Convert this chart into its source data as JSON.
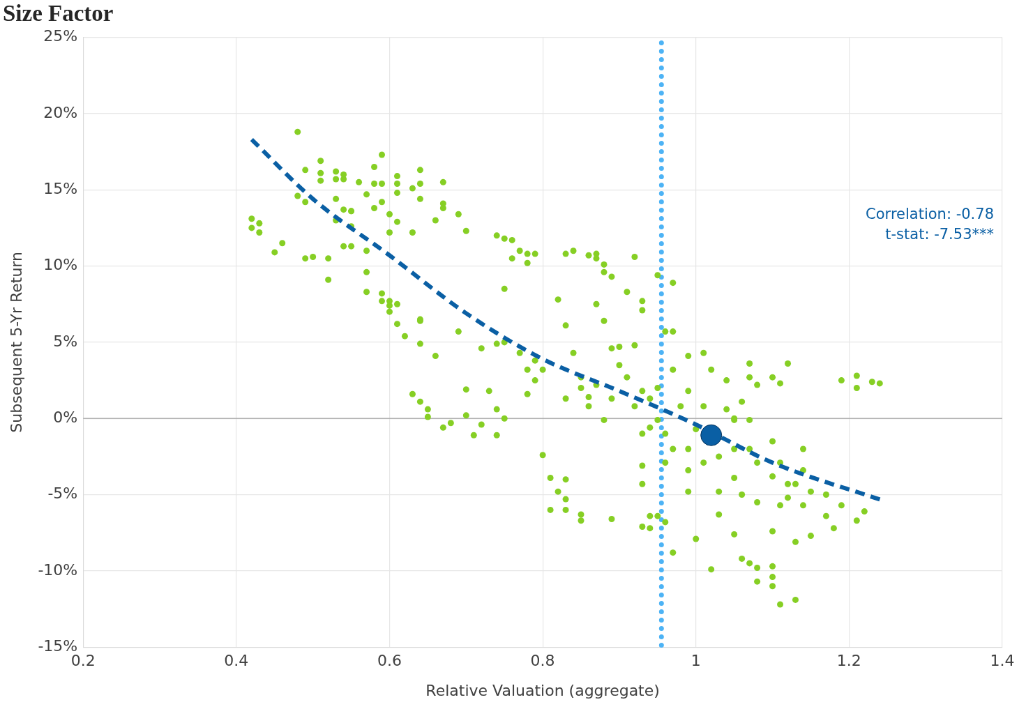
{
  "chart_data": {
    "type": "scatter",
    "title": "Size Factor",
    "xlabel": "Relative Valuation (aggregate)",
    "ylabel": "Subsequent 5-Yr Return",
    "xlim": [
      0.2,
      1.4
    ],
    "xticks": [
      0.2,
      0.4,
      0.6,
      0.8,
      1,
      1.2,
      1.4
    ],
    "ylim": [
      -15,
      25
    ],
    "yticks": [
      {
        "value": -15,
        "label": "-15%"
      },
      {
        "value": -10,
        "label": "-10%"
      },
      {
        "value": -5,
        "label": "-5%"
      },
      {
        "value": 0,
        "label": "0%"
      },
      {
        "value": 5,
        "label": "5%"
      },
      {
        "value": 10,
        "label": "10%"
      },
      {
        "value": 15,
        "label": "15%"
      },
      {
        "value": 20,
        "label": "20%"
      },
      {
        "value": 25,
        "label": "25%"
      }
    ],
    "grid": true,
    "legend": false,
    "marker": "circle",
    "annotations": [
      "Correlation: -0.78",
      "t-stat: -7.53***"
    ],
    "ref_lines": [
      {
        "axis": "y",
        "value": 0,
        "label": null,
        "color": "#b0b0b0",
        "line_style": "solid"
      },
      {
        "axis": "x",
        "value": 0.955,
        "label": null,
        "color": "#4db3f5",
        "line_style": "dotted"
      }
    ],
    "series": [
      {
        "color": "#86cf24",
        "x": [
          0.42,
          0.42,
          0.43,
          0.43,
          0.45,
          0.46,
          0.48,
          0.48,
          0.49,
          0.49,
          0.49,
          0.5,
          0.51,
          0.51,
          0.51,
          0.52,
          0.52,
          0.53,
          0.53,
          0.53,
          0.53,
          0.54,
          0.54,
          0.54,
          0.55,
          0.55,
          0.55,
          0.54,
          0.55,
          0.56,
          0.57,
          0.57,
          0.57,
          0.57,
          0.58,
          0.58,
          0.58,
          0.59,
          0.59,
          0.59,
          0.59,
          0.59,
          0.6,
          0.6,
          0.61,
          0.6,
          0.6,
          0.61,
          0.61,
          0.61,
          0.6,
          0.61,
          0.61,
          0.62,
          0.64,
          0.63,
          0.64,
          0.64,
          0.63,
          0.64,
          0.64,
          0.64,
          0.63,
          0.64,
          0.65,
          0.65,
          0.67,
          0.67,
          0.66,
          0.67,
          0.66,
          0.67,
          0.68,
          0.69,
          0.69,
          0.7,
          0.7,
          0.7,
          0.71,
          0.72,
          0.73,
          0.72,
          0.74,
          0.74,
          0.75,
          0.74,
          0.74,
          0.75,
          0.75,
          0.75,
          0.76,
          0.76,
          0.77,
          0.78,
          0.78,
          0.79,
          0.77,
          0.78,
          0.79,
          0.79,
          0.78,
          0.8,
          0.8,
          0.82,
          0.81,
          0.82,
          0.83,
          0.81,
          0.83,
          0.83,
          0.83,
          0.83,
          0.83,
          0.84,
          0.84,
          0.85,
          0.85,
          0.86,
          0.86,
          0.87,
          0.87,
          0.87,
          0.88,
          0.88,
          0.88,
          0.89,
          0.89,
          0.9,
          0.91,
          0.92,
          0.93,
          0.93,
          0.93,
          0.94,
          0.94,
          0.95,
          0.95,
          0.97,
          0.96,
          0.97,
          0.96,
          0.97,
          0.99,
          1.0,
          1.02,
          1.03,
          1.05,
          1.06,
          1.07,
          1.08,
          1.08,
          1.1,
          1.1,
          1.1,
          1.11,
          1.13,
          1.13,
          1.11,
          1.1,
          1.15,
          1.17,
          1.18,
          1.19,
          1.21,
          1.22,
          1.12,
          1.14,
          1.19,
          1.21,
          1.21,
          1.23,
          1.24,
          1.01,
          1.0,
          1.04,
          1.05,
          1.07,
          1.07,
          1.08,
          1.1,
          1.11,
          1.12,
          1.07,
          1.08,
          1.1,
          1.12,
          1.05,
          1.03,
          1.03,
          1.05,
          1.06,
          1.08,
          0.99,
          0.99,
          0.99,
          1.01,
          0.97,
          0.98,
          0.96,
          0.97,
          0.95,
          0.94,
          0.93,
          0.93,
          0.92,
          0.91,
          0.89,
          0.88,
          0.87,
          0.86,
          0.85,
          0.85,
          0.89,
          0.9,
          0.92,
          0.94,
          0.95,
          0.93,
          0.93,
          0.96,
          0.99,
          1.01,
          1.05,
          1.07,
          1.1,
          1.11,
          1.14,
          1.13,
          1.15,
          1.17,
          1.14,
          1.06,
          1.02,
          1.04
        ],
        "values": [
          13.1,
          12.5,
          12.8,
          12.2,
          10.9,
          11.5,
          18.8,
          14.6,
          16.3,
          14.2,
          10.5,
          10.6,
          16.9,
          15.6,
          16.1,
          10.5,
          9.1,
          16.2,
          14.4,
          15.7,
          13.0,
          13.7,
          16.0,
          15.7,
          12.6,
          13.6,
          13.6,
          11.3,
          11.3,
          15.5,
          14.7,
          11.0,
          9.6,
          8.3,
          16.5,
          13.8,
          15.4,
          17.3,
          14.2,
          15.4,
          7.7,
          8.2,
          7.7,
          7.4,
          7.5,
          7.0,
          13.4,
          15.9,
          15.4,
          14.8,
          12.2,
          12.9,
          6.2,
          5.4,
          16.3,
          15.1,
          15.4,
          14.4,
          12.2,
          6.4,
          6.5,
          4.9,
          1.6,
          1.1,
          0.6,
          0.1,
          15.5,
          13.8,
          13.0,
          14.1,
          4.1,
          -0.6,
          -0.3,
          13.4,
          5.7,
          12.3,
          1.9,
          0.2,
          -1.1,
          4.6,
          1.8,
          -0.4,
          4.9,
          12.0,
          11.8,
          -1.1,
          0.6,
          0.0,
          8.5,
          5.0,
          11.7,
          10.5,
          11.0,
          10.8,
          10.2,
          10.8,
          4.3,
          3.2,
          3.8,
          2.5,
          1.6,
          -2.4,
          3.2,
          7.8,
          -3.9,
          -4.8,
          -5.3,
          -6.0,
          -4.0,
          -6.0,
          1.3,
          6.1,
          10.8,
          11.0,
          4.3,
          -6.3,
          -6.7,
          1.4,
          10.7,
          10.8,
          10.5,
          7.5,
          6.4,
          10.1,
          9.6,
          9.3,
          -6.6,
          3.5,
          8.3,
          10.6,
          7.7,
          7.1,
          -7.1,
          -7.2,
          -6.4,
          -6.4,
          9.4,
          8.9,
          5.7,
          5.7,
          -6.8,
          -8.8,
          -4.8,
          -7.9,
          -9.9,
          -6.3,
          -7.6,
          -9.2,
          -9.5,
          -10.7,
          -9.8,
          -9.7,
          -10.4,
          -11.0,
          -12.2,
          -11.9,
          -8.1,
          -5.7,
          -7.4,
          -7.7,
          -6.4,
          -7.2,
          -5.7,
          -6.7,
          -6.1,
          -5.2,
          -5.7,
          2.5,
          2.8,
          2.0,
          2.4,
          2.3,
          0.8,
          -0.7,
          0.6,
          0.0,
          2.7,
          3.6,
          2.2,
          2.7,
          2.3,
          3.6,
          -2.0,
          -2.9,
          -3.8,
          -4.3,
          -2.0,
          -2.5,
          -4.8,
          -3.9,
          -5.0,
          -5.5,
          -2.0,
          1.8,
          4.1,
          4.3,
          3.2,
          0.8,
          -1.0,
          -2.0,
          -0.1,
          -0.6,
          -1.0,
          1.8,
          0.8,
          2.7,
          1.3,
          -0.1,
          2.2,
          0.8,
          2.7,
          2.0,
          4.6,
          4.7,
          4.8,
          1.3,
          2.0,
          -3.1,
          -4.3,
          -2.9,
          -3.4,
          -2.9,
          -0.1,
          -0.1,
          -1.5,
          -2.9,
          -3.4,
          -4.3,
          -4.8,
          -5.0,
          -2.0,
          1.1,
          3.2,
          2.5
        ]
      },
      {
        "type": "line",
        "color": "#0a5fa4",
        "marker": "none",
        "line_style": "dashed",
        "x": [
          0.42,
          0.5,
          0.6,
          0.7,
          0.8,
          0.9,
          1.0,
          1.1,
          1.245
        ],
        "values": [
          18.3,
          14.4,
          10.7,
          6.9,
          3.9,
          1.8,
          -0.4,
          -2.9,
          -5.4
        ]
      },
      {
        "color": "#0a5fa4",
        "x": [
          1.02
        ],
        "values": [
          -1.1
        ]
      }
    ]
  }
}
